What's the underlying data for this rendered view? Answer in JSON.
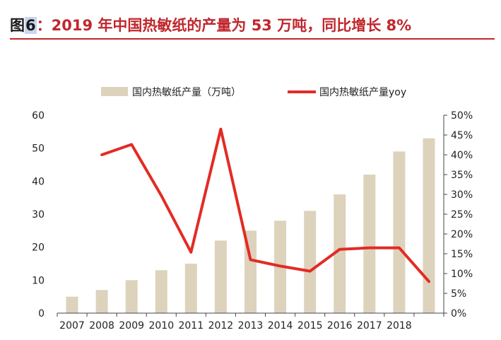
{
  "title": {
    "label": "图",
    "number": "6",
    "text": "：2019 年中国热敏纸的产量为 53 万吨，同比增长 8%"
  },
  "chart_data": {
    "type": "bar",
    "categories": [
      "2007",
      "2008",
      "2009",
      "2010",
      "2011",
      "2012",
      "2013",
      "2014",
      "2015",
      "2016",
      "2017",
      "2018",
      ""
    ],
    "series": [
      {
        "name": "国内热敏纸产量（万吨）",
        "type": "bar",
        "axis": "left",
        "color": "#ddd2bc",
        "values": [
          5,
          7,
          10,
          13,
          15,
          22,
          25,
          28,
          31,
          36,
          42,
          49,
          53
        ]
      },
      {
        "name": "国内热敏纸产量yoy",
        "type": "line",
        "axis": "right",
        "color": "#e32b24",
        "values": [
          null,
          40,
          42.6,
          29.7,
          15.4,
          46.5,
          13.5,
          11.9,
          10.6,
          16.1,
          16.5,
          16.5,
          8
        ]
      }
    ],
    "y_left": {
      "min": 0,
      "max": 60,
      "ticks": [
        "0",
        "10",
        "20",
        "30",
        "40",
        "50",
        "60"
      ]
    },
    "y_right": {
      "min": 0,
      "max": 50,
      "ticks": [
        "0%",
        "5%",
        "10%",
        "15%",
        "20%",
        "25%",
        "30%",
        "35%",
        "40%",
        "45%",
        "50%"
      ]
    },
    "legend_position": "top-center",
    "grid": false
  }
}
